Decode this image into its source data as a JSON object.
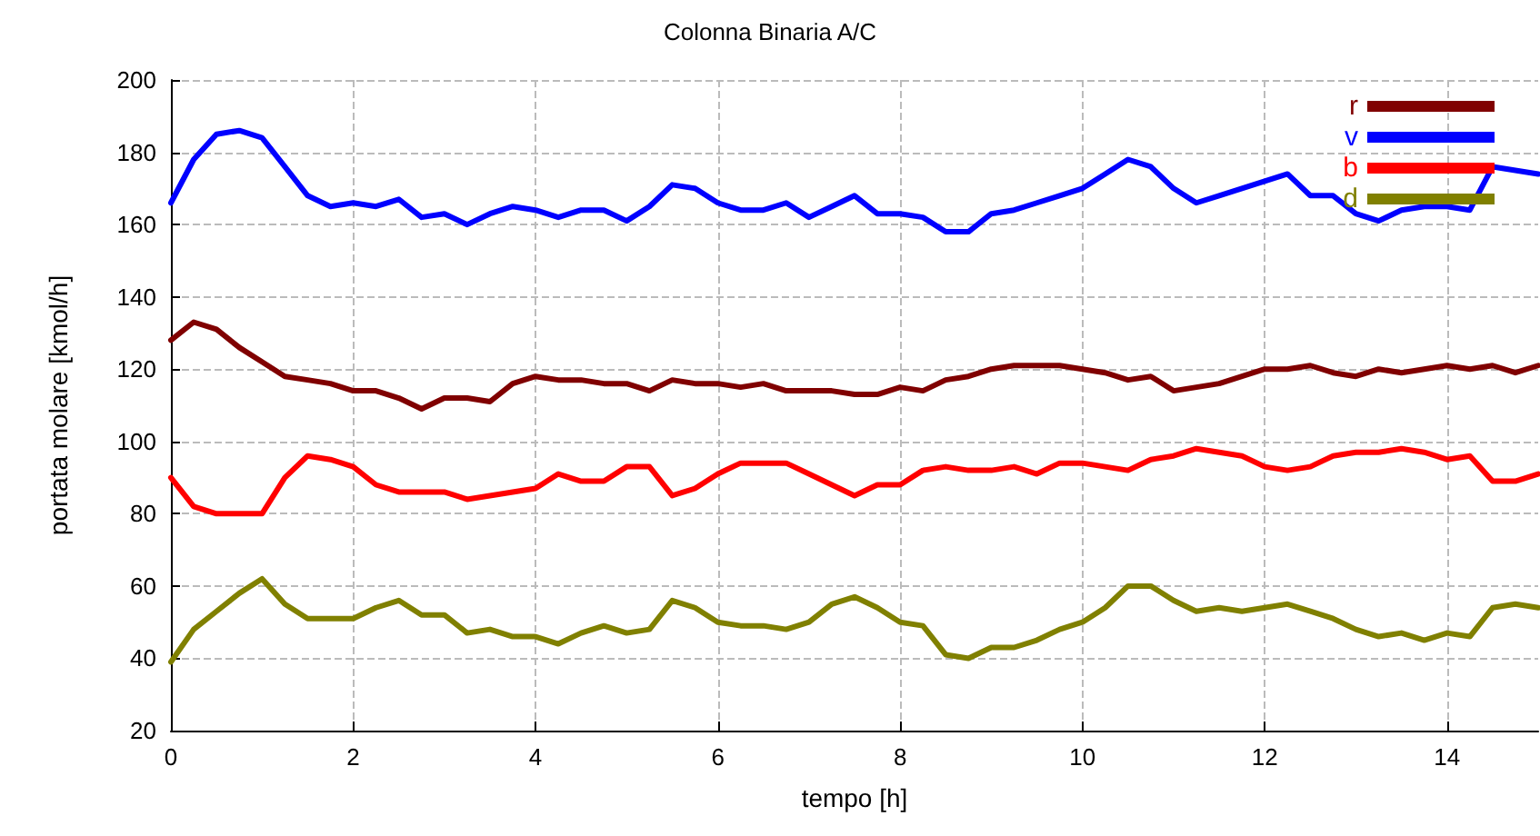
{
  "chart_data": {
    "type": "line",
    "title": "Colonna Binaria A/C",
    "xlabel": "tempo [h]",
    "ylabel": "portata molare [kmol/h]",
    "x": [
      0,
      0.25,
      0.5,
      0.75,
      1,
      1.25,
      1.5,
      1.75,
      2,
      2.25,
      2.5,
      2.75,
      3,
      3.25,
      3.5,
      3.75,
      4,
      4.25,
      4.5,
      4.75,
      5,
      5.25,
      5.5,
      5.75,
      6,
      6.25,
      6.5,
      6.75,
      7,
      7.25,
      7.5,
      7.75,
      8,
      8.25,
      8.5,
      8.75,
      9,
      9.25,
      9.5,
      9.75,
      10,
      10.25,
      10.5,
      10.75,
      11,
      11.25,
      11.5,
      11.75,
      12,
      12.25,
      12.5,
      12.75,
      13,
      13.25,
      13.5,
      13.75,
      14,
      14.25,
      14.5,
      14.75,
      15
    ],
    "series": [
      {
        "name": "r",
        "color": "#800000",
        "values": [
          128,
          133,
          131,
          126,
          122,
          118,
          117,
          116,
          114,
          114,
          112,
          109,
          112,
          112,
          111,
          116,
          118,
          117,
          117,
          116,
          116,
          114,
          117,
          116,
          116,
          115,
          116,
          114,
          114,
          114,
          113,
          113,
          115,
          114,
          117,
          118,
          120,
          121,
          121,
          121,
          120,
          119,
          117,
          118,
          114,
          115,
          116,
          118,
          120,
          120,
          121,
          119,
          118,
          120,
          119,
          120,
          121,
          120,
          121,
          119,
          121
        ]
      },
      {
        "name": "v",
        "color": "#0000ff",
        "values": [
          166,
          178,
          185,
          186,
          184,
          176,
          168,
          165,
          166,
          165,
          167,
          162,
          163,
          160,
          163,
          165,
          164,
          162,
          164,
          164,
          161,
          165,
          171,
          170,
          166,
          164,
          164,
          166,
          162,
          165,
          168,
          163,
          163,
          162,
          158,
          158,
          163,
          164,
          166,
          168,
          170,
          174,
          178,
          176,
          170,
          166,
          168,
          170,
          172,
          174,
          168,
          168,
          163,
          161,
          164,
          165,
          165,
          164,
          176,
          175,
          174
        ]
      },
      {
        "name": "b",
        "color": "#ff0000",
        "values": [
          90,
          82,
          80,
          80,
          80,
          90,
          96,
          95,
          93,
          88,
          86,
          86,
          86,
          84,
          85,
          86,
          87,
          91,
          89,
          89,
          93,
          93,
          85,
          87,
          91,
          94,
          94,
          94,
          91,
          88,
          85,
          88,
          88,
          92,
          93,
          92,
          92,
          93,
          91,
          94,
          94,
          93,
          92,
          95,
          96,
          98,
          97,
          96,
          93,
          92,
          93,
          96,
          97,
          97,
          98,
          97,
          95,
          96,
          89,
          89,
          91
        ]
      },
      {
        "name": "d",
        "color": "#808000",
        "values": [
          39,
          48,
          53,
          58,
          62,
          55,
          51,
          51,
          51,
          54,
          56,
          52,
          52,
          47,
          48,
          46,
          46,
          44,
          47,
          49,
          47,
          48,
          56,
          54,
          50,
          49,
          49,
          48,
          50,
          55,
          57,
          54,
          50,
          49,
          41,
          40,
          43,
          43,
          45,
          48,
          50,
          54,
          60,
          60,
          56,
          53,
          54,
          53,
          54,
          55,
          53,
          51,
          48,
          46,
          47,
          45,
          47,
          46,
          54,
          55,
          54
        ]
      }
    ],
    "xlim": [
      0,
      15
    ],
    "xticks": [
      0,
      2,
      4,
      6,
      8,
      10,
      12,
      14
    ],
    "ylim": [
      20,
      200
    ],
    "yticks": [
      20,
      40,
      60,
      80,
      100,
      120,
      140,
      160,
      180,
      200
    ],
    "grid": true,
    "legend": "top right",
    "marker": "none",
    "line_style": "solid"
  }
}
